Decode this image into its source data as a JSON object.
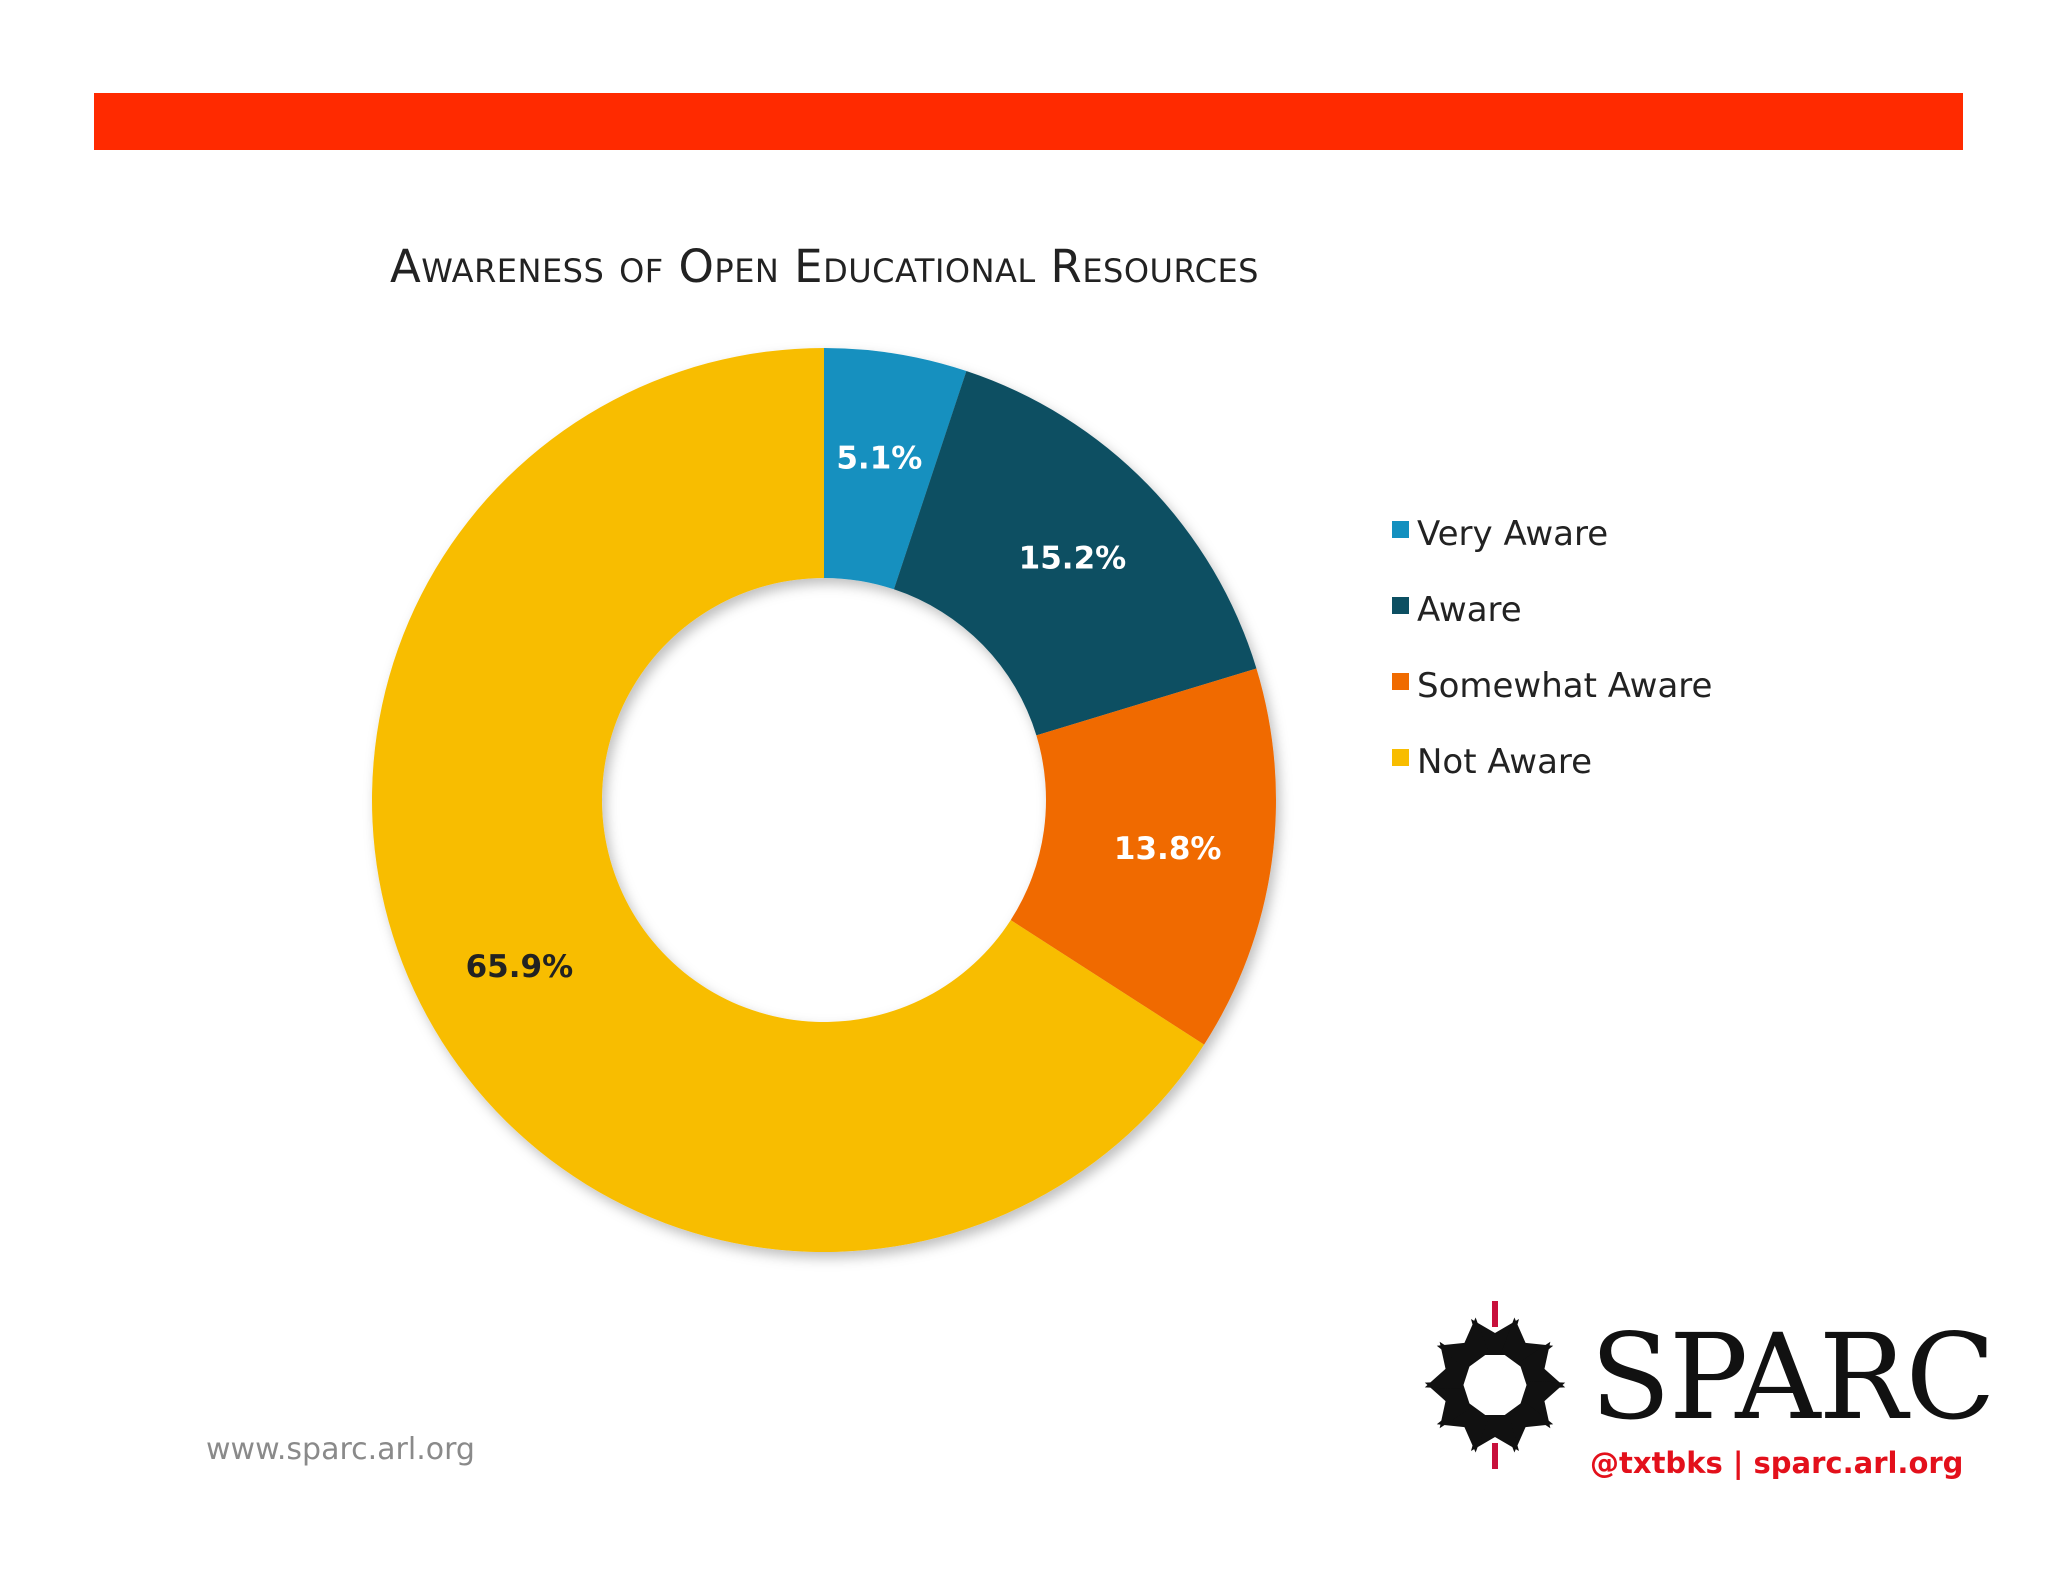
{
  "chart_data": {
    "type": "pie",
    "title": "Awareness of Open Educational Resources",
    "categories": [
      "Very Aware",
      "Aware",
      "Somewhat Aware",
      "Not Aware"
    ],
    "values": [
      5.1,
      15.2,
      13.8,
      65.9
    ],
    "labels": [
      "5.1%",
      "15.2%",
      "13.8%",
      "65.9%"
    ],
    "colors": [
      "#1390bf",
      "#0c4f62",
      "#f06b00",
      "#f8bd00"
    ],
    "label_colors": [
      "#ffffff",
      "#ffffff",
      "#ffffff",
      "#222222"
    ],
    "donut": true,
    "legend_position": "right"
  },
  "footer": {
    "url": "www.sparc.arl.org"
  },
  "logo": {
    "word": "SPARC",
    "handle": "@txtbks | sparc.arl.org"
  },
  "theme": {
    "banner_color": "#ff2a00"
  }
}
